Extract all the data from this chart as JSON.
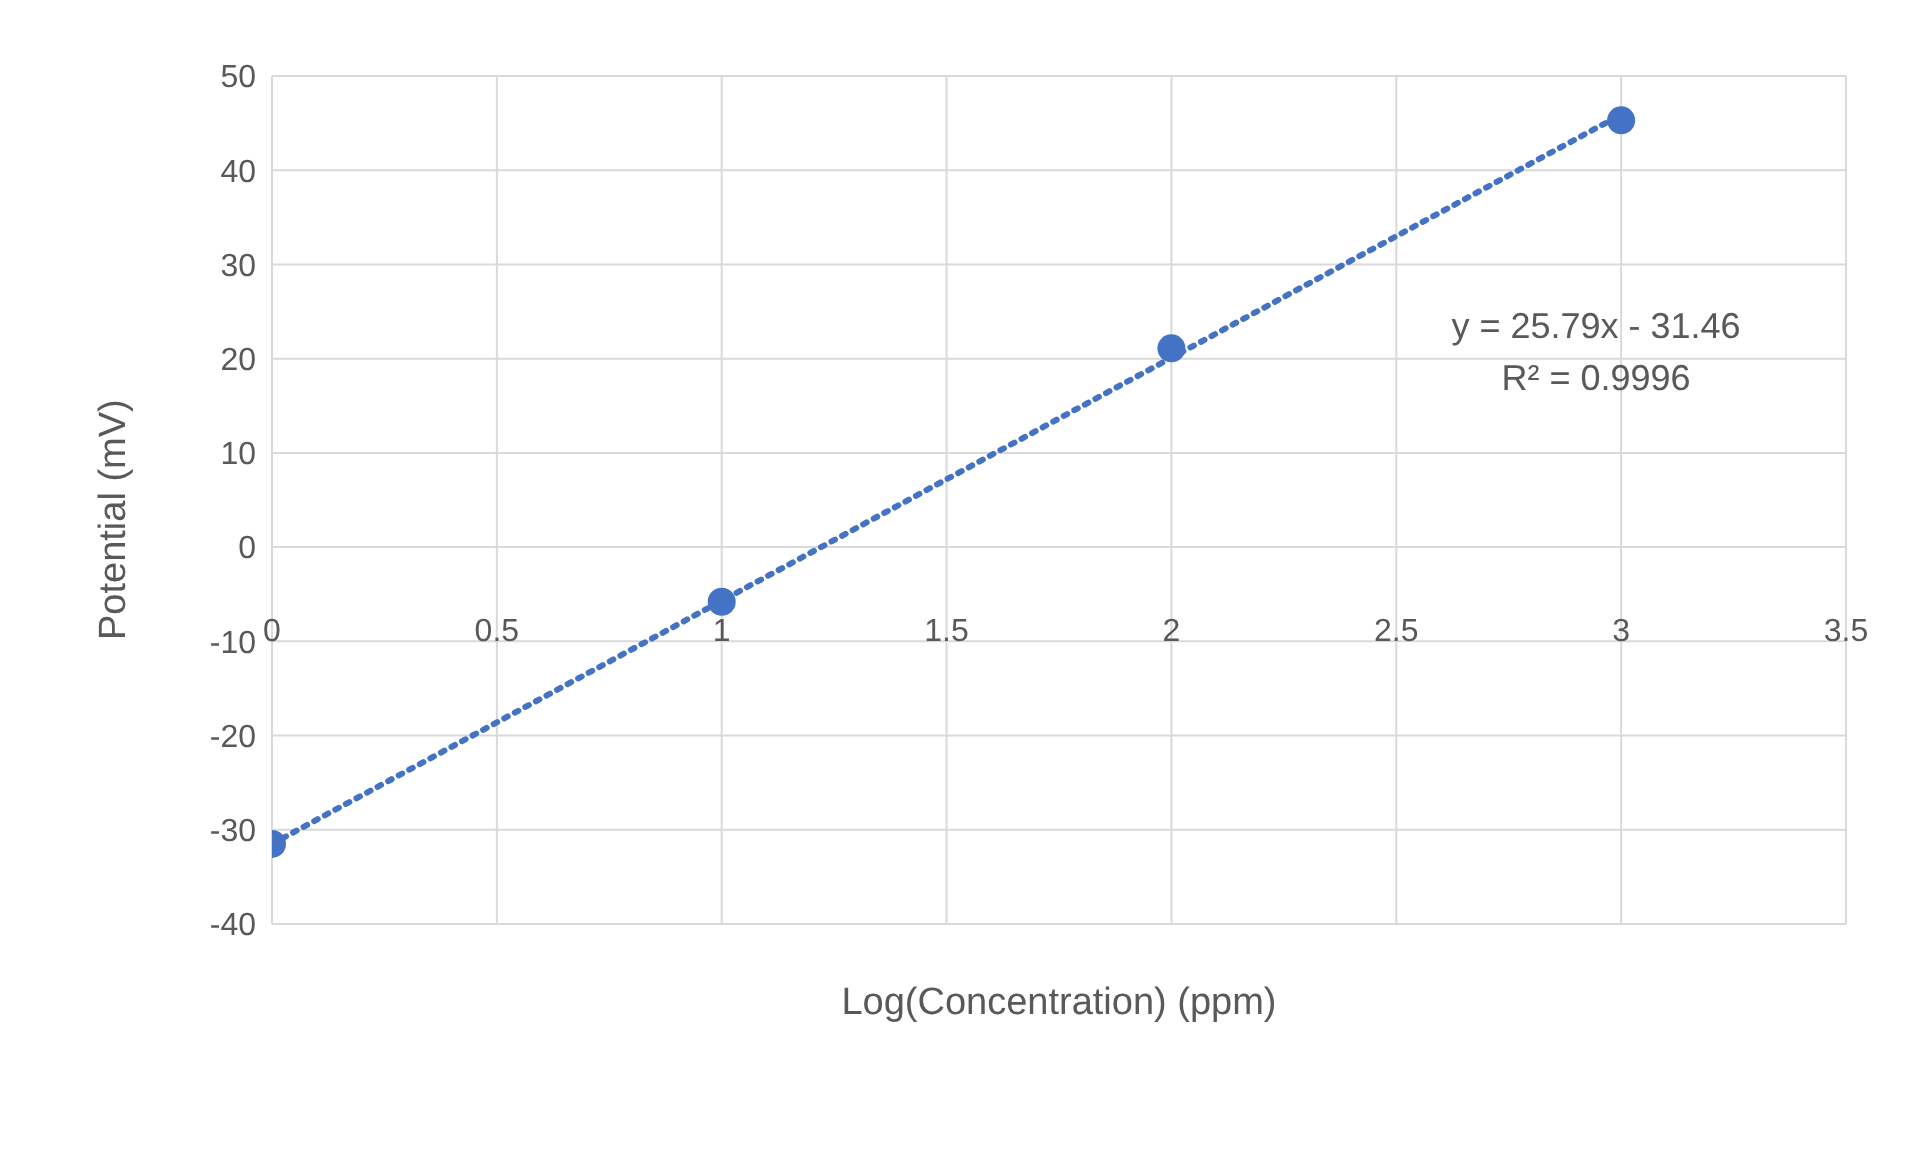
{
  "chart_data": {
    "type": "scatter",
    "xlabel": "Log(Concentration) (ppm)",
    "ylabel": "Potential (mV)",
    "xlim": [
      0,
      3.5
    ],
    "xticks": [
      0,
      0.5,
      1,
      1.5,
      2,
      2.5,
      3,
      3.5
    ],
    "ylim": [
      -40,
      50
    ],
    "yticks": [
      -40,
      -30,
      -20,
      -10,
      0,
      10,
      20,
      30,
      40,
      50
    ],
    "grid": true,
    "marker": "circle",
    "annotations": [
      "y = 25.79x - 31.46",
      "R² = 0.9996"
    ],
    "series": [
      {
        "color": "#4472c4",
        "x": [
          0,
          1,
          2,
          3
        ],
        "values": [
          -31.5,
          -5.8,
          21.1,
          45.3
        ]
      },
      {
        "type": "line",
        "color": "#4472c4",
        "line_style": "dotted",
        "marker": "none",
        "x": [
          0,
          3
        ],
        "values": [
          -31.5,
          45.9
        ]
      }
    ]
  }
}
